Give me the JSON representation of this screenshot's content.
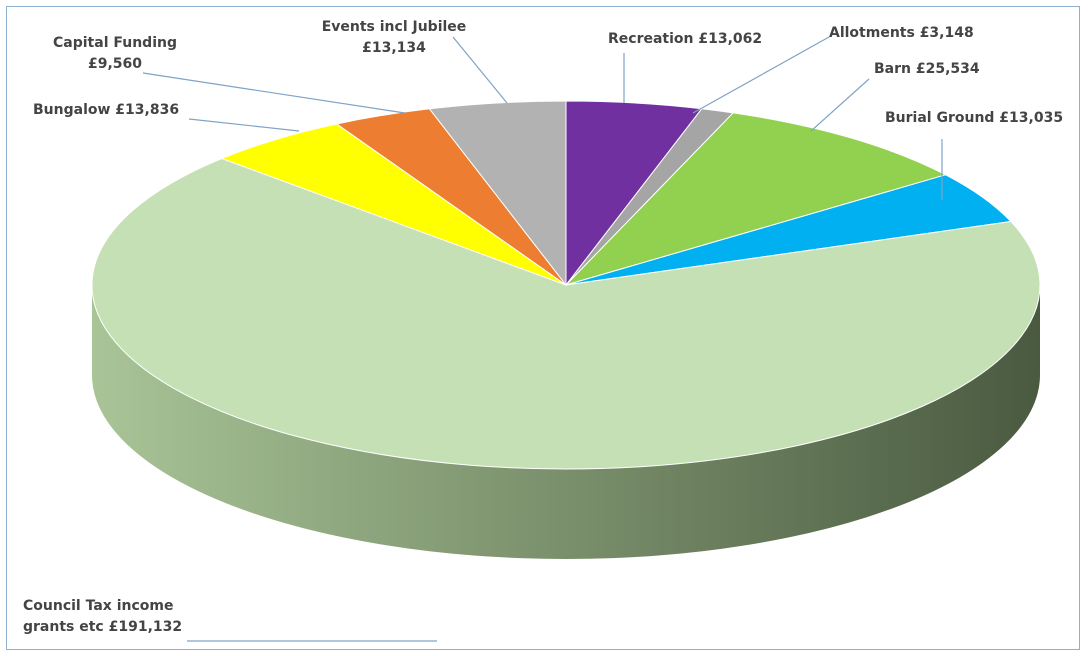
{
  "chart_data": {
    "type": "pie",
    "title": "",
    "three_d": true,
    "currency": "£",
    "slices": [
      {
        "name": "Recreation",
        "value": 13062,
        "color": "#7030a0",
        "label_lines": [
          "Recreation  £13,062"
        ]
      },
      {
        "name": "Allotments",
        "value": 3148,
        "color": "#a5a5a5",
        "label_lines": [
          "Allotments  £3,148"
        ]
      },
      {
        "name": "Barn",
        "value": 25534,
        "color": "#92d050",
        "label_lines": [
          "Barn  £25,534"
        ]
      },
      {
        "name": "Burial Ground",
        "value": 13035,
        "color": "#00b0f0",
        "label_lines": [
          "Burial Ground  £13,035"
        ]
      },
      {
        "name": "Council Tax income grants etc",
        "value": 191132,
        "color": "#c5e0b4",
        "label_lines": [
          "Council Tax income",
          "grants etc  £191,132"
        ]
      },
      {
        "name": "Bungalow",
        "value": 13836,
        "color": "#ffff00",
        "label_lines": [
          "Bungalow  £13,836"
        ]
      },
      {
        "name": "Capital Funding",
        "value": 9560,
        "color": "#ed7d31",
        "label_lines": [
          "Capital Funding",
          "£9,560"
        ]
      },
      {
        "name": "Events incl Jubilee",
        "value": 13134,
        "color": "#b2b2b2",
        "label_lines": [
          "Events incl Jubilee",
          "£13,134"
        ]
      }
    ],
    "side_color_light": "#a9c497",
    "side_color_dark": "#4a5a40",
    "frame_color": "#8fb0d0"
  }
}
